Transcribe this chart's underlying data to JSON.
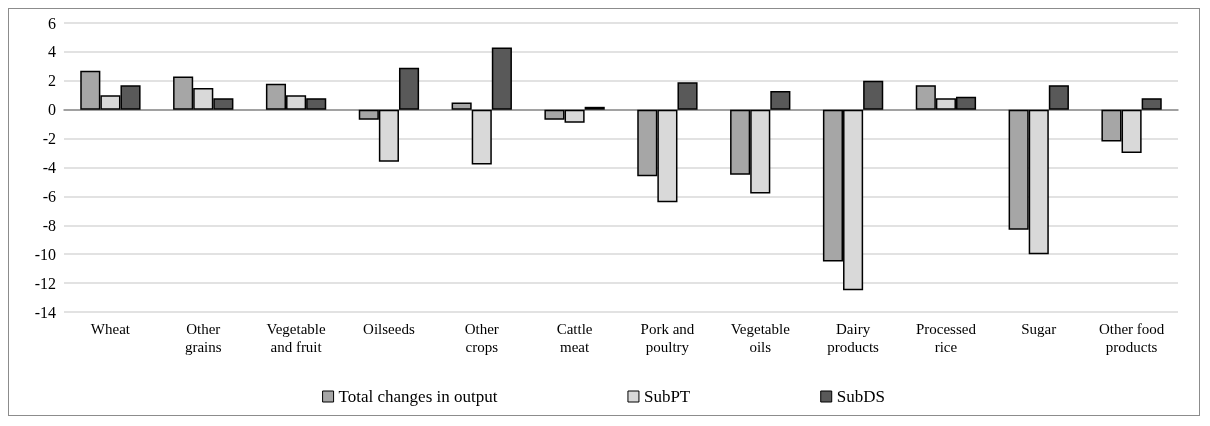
{
  "chart_data": {
    "type": "bar",
    "categories": [
      "Wheat",
      "Other\ngrains",
      "Vegetable\nand fruit",
      "Oilseeds",
      "Other\ncrops",
      "Cattle\nmeat",
      "Pork and\npoultry",
      "Vegetable\noils",
      "Dairy\nproducts",
      "Processed\nrice",
      "Sugar",
      "Other food\nproducts"
    ],
    "series": [
      {
        "name": "Total changes in output",
        "color": "#a6a6a6",
        "values": [
          2.7,
          2.3,
          1.8,
          -0.7,
          0.5,
          -0.7,
          -4.6,
          -4.5,
          -10.5,
          1.7,
          -8.3,
          -2.2
        ]
      },
      {
        "name": "SubPT",
        "color": "#d9d9d9",
        "values": [
          1.0,
          1.5,
          1.0,
          -3.6,
          -3.8,
          -0.9,
          -6.4,
          -5.8,
          -12.5,
          0.8,
          -10.0,
          -3.0
        ]
      },
      {
        "name": "SubDS",
        "color": "#595959",
        "values": [
          1.7,
          0.8,
          0.8,
          2.9,
          4.3,
          0.2,
          1.9,
          1.3,
          2.0,
          0.9,
          1.7,
          0.8
        ]
      }
    ],
    "ylim": [
      -14,
      6
    ],
    "yticks": [
      -14,
      -12,
      -10,
      -8,
      -6,
      -4,
      -2,
      0,
      2,
      4,
      6
    ],
    "grid": "y",
    "legend": "bottom"
  }
}
